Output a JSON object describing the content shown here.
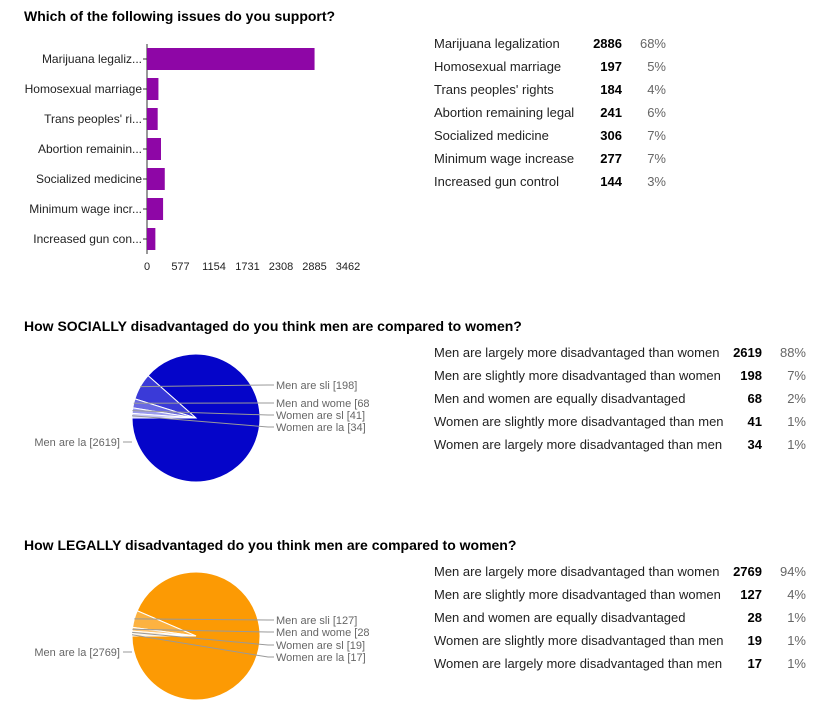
{
  "colors": {
    "bar": "#8e06a6",
    "pie_social": "#0505c9",
    "pie_legal": "#fc9a04",
    "leader": "#999999"
  },
  "sections": [
    {
      "title": "Which of the following issues do you support?"
    },
    {
      "title": "How SOCIALLY disadvantaged do you think men are compared to women?"
    },
    {
      "title": "How LEGALLY disadvantaged do you think men are compared to women?"
    }
  ],
  "summaries": [
    [
      {
        "label": "Marijuana legalization",
        "count": "2886",
        "pct": "68%"
      },
      {
        "label": "Homosexual marriage",
        "count": "197",
        "pct": "5%"
      },
      {
        "label": "Trans peoples' rights",
        "count": "184",
        "pct": "4%"
      },
      {
        "label": "Abortion remaining legal",
        "count": "241",
        "pct": "6%"
      },
      {
        "label": "Socialized medicine",
        "count": "306",
        "pct": "7%"
      },
      {
        "label": "Minimum wage increase",
        "count": "277",
        "pct": "7%"
      },
      {
        "label": "Increased gun control",
        "count": "144",
        "pct": "3%"
      }
    ],
    [
      {
        "label": "Men are largely more disadvantaged than women",
        "count": "2619",
        "pct": "88%"
      },
      {
        "label": "Men are slightly more disadvantaged than women",
        "count": "198",
        "pct": "7%"
      },
      {
        "label": "Men and women are equally disadvantaged",
        "count": "68",
        "pct": "2%"
      },
      {
        "label": "Women are slightly more disadvantaged than men",
        "count": "41",
        "pct": "1%"
      },
      {
        "label": "Women are largely more disadvantaged than men",
        "count": "34",
        "pct": "1%"
      }
    ],
    [
      {
        "label": "Men are largely more disadvantaged than women",
        "count": "2769",
        "pct": "94%"
      },
      {
        "label": "Men are slightly more disadvantaged than women",
        "count": "127",
        "pct": "4%"
      },
      {
        "label": "Men and women are equally disadvantaged",
        "count": "28",
        "pct": "1%"
      },
      {
        "label": "Women are slightly more disadvantaged than men",
        "count": "19",
        "pct": "1%"
      },
      {
        "label": "Women are largely more disadvantaged than men",
        "count": "17",
        "pct": "1%"
      }
    ]
  ],
  "chart_data": [
    {
      "type": "bar",
      "orientation": "horizontal",
      "categories": [
        "Marijuana legaliz...",
        "Homosexual marriage",
        "Trans peoples' ri...",
        "Abortion remainin...",
        "Socialized medicine",
        "Minimum wage incr...",
        "Increased gun con..."
      ],
      "values": [
        2886,
        197,
        184,
        241,
        306,
        277,
        144
      ],
      "xticks": [
        "0",
        "577",
        "1154",
        "1731",
        "2308",
        "2885",
        "3462"
      ],
      "xlim": [
        0,
        3462
      ],
      "color": "#8e06a6"
    },
    {
      "type": "pie",
      "values": [
        2619,
        198,
        68,
        41,
        34
      ],
      "labels": [
        "Men are la [2619]",
        "Men are sli [198]",
        "Men and wome [68",
        "Women are sl [41]",
        "Women are la [34]"
      ],
      "colors": [
        "#0505c9",
        "#3a3ad8",
        "#6a6ae3",
        "#9a9aee",
        "#c7c7f7"
      ]
    },
    {
      "type": "pie",
      "values": [
        2769,
        127,
        28,
        19,
        17
      ],
      "labels": [
        "Men are la [2769]",
        "Men are sli [127]",
        "Men and wome [28",
        "Women are sl [19]",
        "Women are la [17]"
      ],
      "colors": [
        "#fc9a04",
        "#fcb241",
        "#fdc676",
        "#fdd9a6",
        "#feebcf"
      ]
    }
  ]
}
